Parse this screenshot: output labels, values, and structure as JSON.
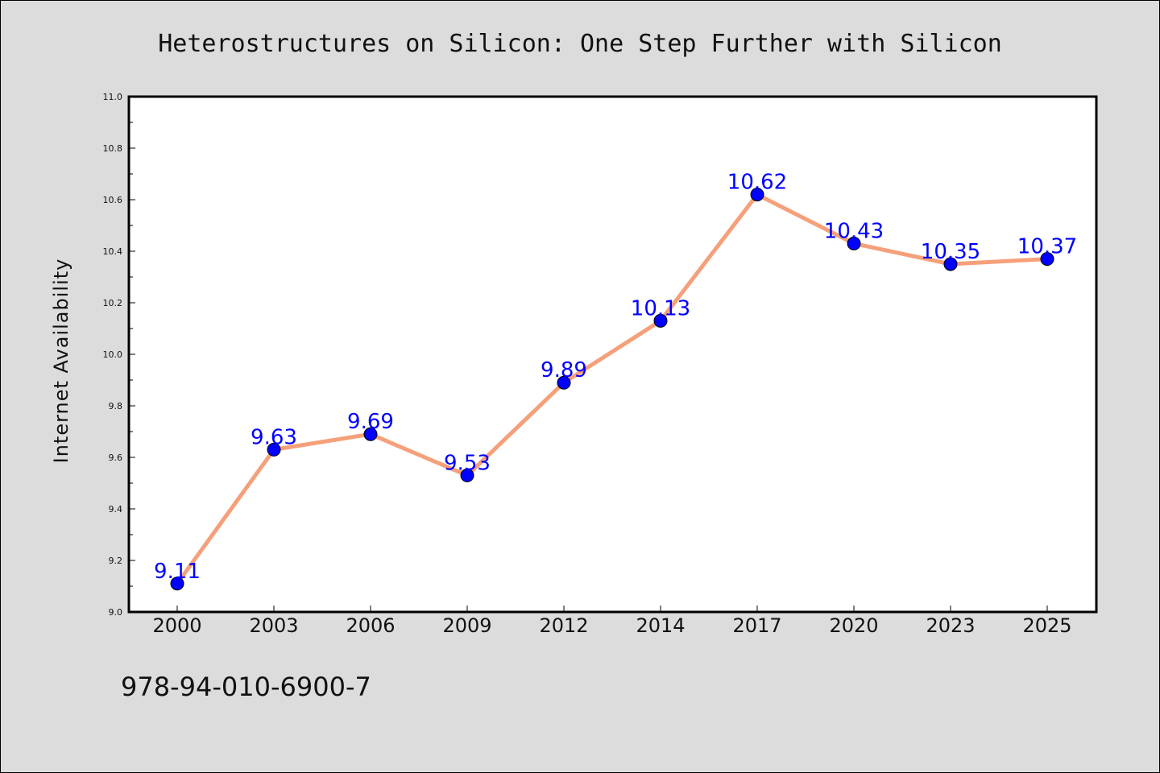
{
  "chart_data": {
    "type": "line",
    "title": "Heterostructures on Silicon: One Step Further with Silicon",
    "xlabel": "",
    "ylabel": "Internet Availability",
    "categories": [
      "2000",
      "2003",
      "2006",
      "2009",
      "2012",
      "2014",
      "2017",
      "2020",
      "2023",
      "2025"
    ],
    "values": [
      9.11,
      9.63,
      9.69,
      9.53,
      9.89,
      10.13,
      10.62,
      10.43,
      10.35,
      10.37
    ],
    "data_labels": [
      "9.11",
      "9.63",
      "9.69",
      "9.53",
      "9.89",
      "10.13",
      "10.62",
      "10.43",
      "10.35",
      "10.37"
    ],
    "ylim": [
      9.0,
      11.0
    ],
    "yticks": [
      "9.0",
      "9.2",
      "9.4",
      "9.6",
      "9.8",
      "10.0",
      "10.2",
      "10.4",
      "10.6",
      "10.8",
      "11.0"
    ],
    "grid": false,
    "legend": "none",
    "colors": {
      "line": "#f5a07a",
      "marker": "#0000ff",
      "data_label": "#0000ff",
      "plot_background": "#ffffff",
      "figure_background": "#dcdcdc"
    }
  },
  "footer_text": "978-94-010-6900-7"
}
